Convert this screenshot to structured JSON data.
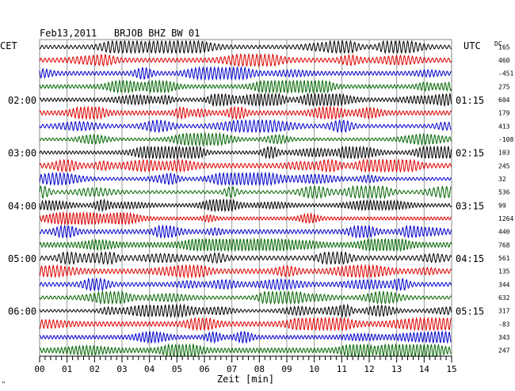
{
  "chart_data": {
    "type": "line",
    "title": "Feb13,2011   BRJOB BHZ BW 01",
    "left_axis_label": "CET",
    "right_axis_label": "UTC",
    "dc_label": "DC",
    "xlabel": "Zeit [min]",
    "xlim": [
      0,
      15
    ],
    "x_ticks": [
      "00",
      "01",
      "02",
      "03",
      "04",
      "05",
      "06",
      "07",
      "08",
      "09",
      "10",
      "11",
      "12",
      "13",
      "14",
      "15"
    ],
    "left_hour_labels": [
      {
        "row": 4,
        "label": "02:00"
      },
      {
        "row": 8,
        "label": "03:00"
      },
      {
        "row": 12,
        "label": "04:00"
      },
      {
        "row": 16,
        "label": "05:00"
      },
      {
        "row": 20,
        "label": "06:00"
      }
    ],
    "right_time_labels": [
      {
        "row": 4,
        "label": "01:15"
      },
      {
        "row": 8,
        "label": "02:15"
      },
      {
        "row": 12,
        "label": "03:15"
      },
      {
        "row": 16,
        "label": "04:15"
      },
      {
        "row": 20,
        "label": "05:15"
      }
    ],
    "trace_color_cycle": [
      "#000000",
      "#dd0000",
      "#0000cc",
      "#006600"
    ],
    "dc_offsets": [
      165,
      460,
      -451,
      275,
      604,
      179,
      413,
      -108,
      103,
      245,
      32,
      536,
      99,
      1264,
      440,
      768,
      561,
      135,
      344,
      632,
      317,
      -83,
      343,
      247
    ],
    "grid": true,
    "corner_mark": "\""
  }
}
